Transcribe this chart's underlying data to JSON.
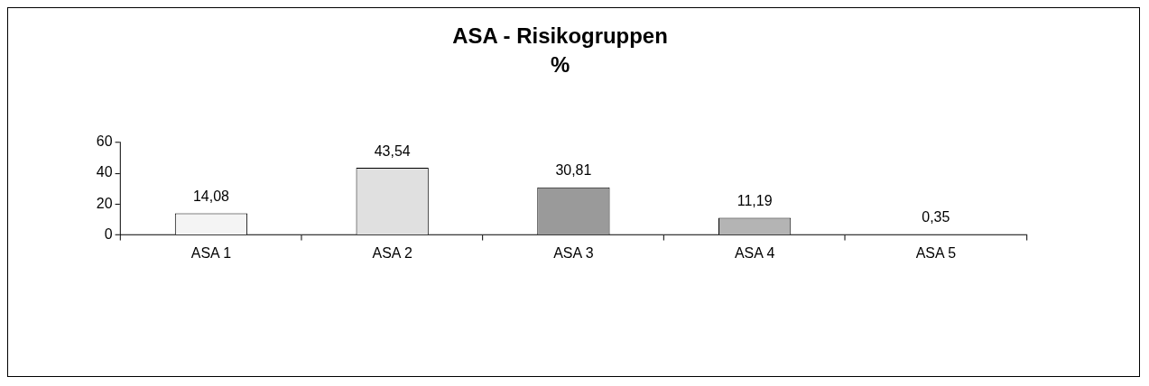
{
  "chart_data": {
    "type": "bar",
    "title": "ASA - Risikogruppen",
    "subtitle": "%",
    "categories": [
      "ASA 1",
      "ASA 2",
      "ASA 3",
      "ASA 4",
      "ASA 5"
    ],
    "values": [
      14.08,
      43.54,
      30.81,
      11.19,
      0.35
    ],
    "colors": [
      "#f4f4f4",
      "#e0e0e0",
      "#9a9a9a",
      "#b4b4b4",
      "#808080"
    ],
    "value_labels": [
      "14,08",
      "43,54",
      "30,81",
      "11,19",
      "0,35"
    ],
    "ylim": [
      0,
      60
    ],
    "yticks": [
      0,
      20,
      40,
      60
    ],
    "grid": false,
    "legend": false
  }
}
